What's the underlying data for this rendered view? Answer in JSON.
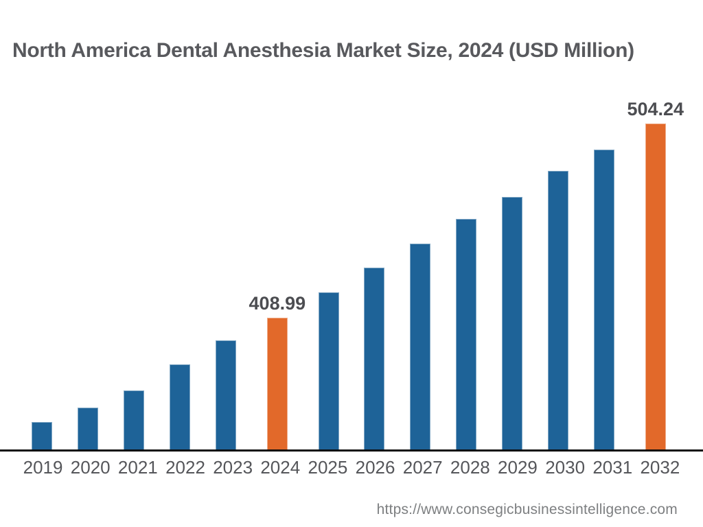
{
  "header": {
    "title": "North America Dental Anesthesia Market Size, 2024 (USD Million)"
  },
  "footer": {
    "source_url": "https://www.consegicbusinessintelligence.com"
  },
  "chart_data": {
    "type": "bar",
    "title": "North America Dental Anesthesia Market Size, 2024 (USD Million)",
    "unit": "USD Million",
    "xlabel": "",
    "ylabel": "",
    "grid": false,
    "legend": false,
    "categories": [
      2019,
      2020,
      2021,
      2022,
      2023,
      2024,
      2025,
      2026,
      2027,
      2028,
      2029,
      2030,
      2031,
      2032
    ],
    "series": [
      {
        "name": "North America Dental Anesthesia Market Size (USD Million)",
        "values": [
          357.5,
          364.6,
          373.2,
          385.9,
          397.6,
          408.99,
          421.4,
          433.6,
          445.4,
          457.2,
          468.0,
          480.8,
          491.3,
          504.24
        ]
      }
    ],
    "data_labels": {
      "2024": "408.99",
      "2032": "504.24"
    },
    "highlighted_years": [
      2024,
      2032
    ],
    "ylim": [
      343.5,
      521
    ],
    "axis": "bottom axis line only, no y-axis, no gridlines",
    "colors": {
      "bar": "#1e6398",
      "highlight": "#e2692a",
      "axis_line": "#0d0d0d",
      "title_text": "#58595d",
      "value_label_text": "#4c4d51",
      "tick_text": "#55565a",
      "url_text": "#7d7f81"
    }
  }
}
